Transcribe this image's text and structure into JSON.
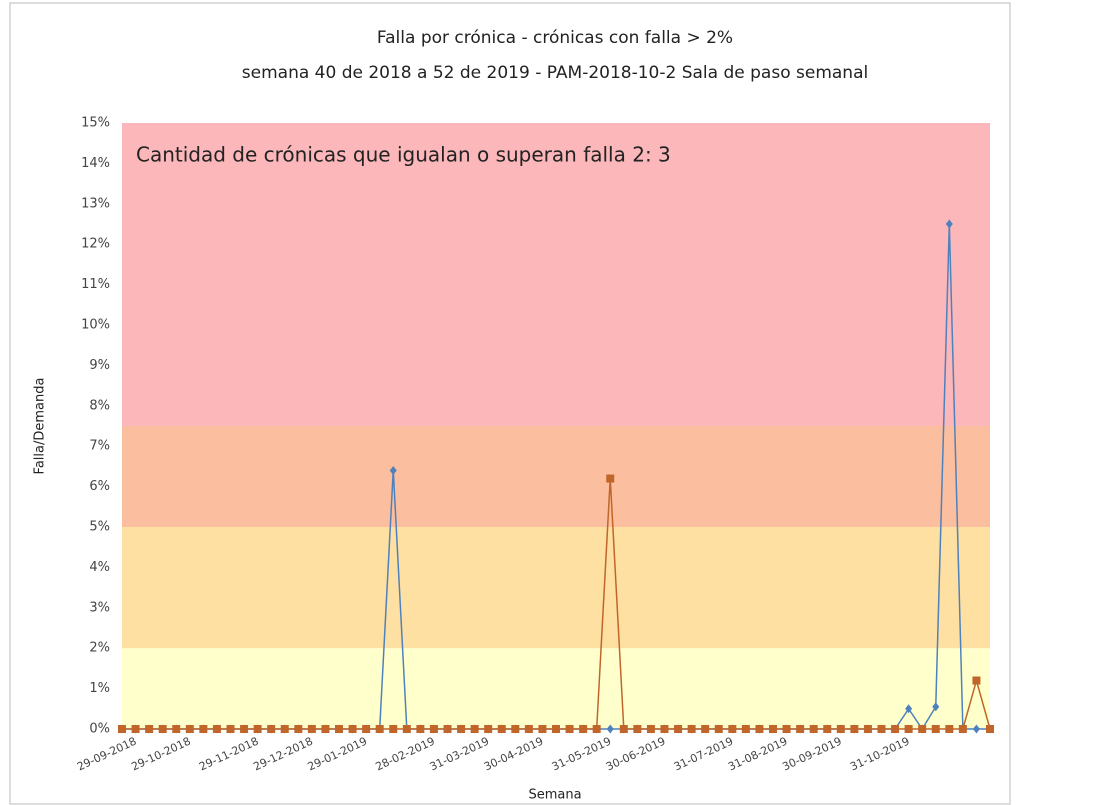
{
  "chart_data": {
    "type": "line",
    "title": "Falla por crónica - crónicas con falla > 2%",
    "subtitle": "semana 40 de 2018 a 52 de 2019 - PAM-2018-10-2 Sala de paso semanal",
    "annotation": "Cantidad de crónicas que igualan o superan falla 2: 3",
    "x_label": "Semana",
    "y_label": "Falla/Demanda",
    "categories": [
      "29-09-2018",
      null,
      null,
      null,
      "29-10-2018",
      null,
      null,
      null,
      null,
      "29-11-2018",
      null,
      null,
      null,
      "29-12-2018",
      null,
      null,
      null,
      "29-01-2019",
      null,
      null,
      null,
      null,
      "28-02-2019",
      null,
      null,
      null,
      "31-03-2019",
      null,
      null,
      null,
      "30-04-2019",
      null,
      null,
      null,
      null,
      "31-05-2019",
      null,
      null,
      null,
      "30-06-2019",
      null,
      null,
      null,
      null,
      "31-07-2019",
      null,
      null,
      null,
      "31-08-2019",
      null,
      null,
      null,
      "30-09-2019",
      null,
      null,
      null,
      null,
      "31-10-2019",
      null,
      null,
      null,
      null,
      null,
      null,
      null
    ],
    "series": [
      {
        "color": "#4f81bd",
        "marker": "diamond",
        "values": [
          0,
          0,
          0,
          0,
          0,
          0,
          0,
          0,
          0,
          0,
          0,
          0,
          0,
          0,
          0,
          0,
          0,
          0,
          0,
          0,
          6.4,
          0,
          0,
          0,
          0,
          0,
          0,
          0,
          0,
          0,
          0,
          0,
          0,
          0,
          0,
          0,
          0,
          0,
          0,
          0,
          0,
          0,
          0,
          0,
          0,
          0,
          0,
          0,
          0,
          0,
          0,
          0,
          0,
          0,
          0,
          0,
          0,
          0,
          0.5,
          0,
          0.55,
          12.5,
          0,
          0,
          0
        ]
      },
      {
        "color": "#c0662a",
        "marker": "square",
        "values": [
          0,
          0,
          0,
          0,
          0,
          0,
          0,
          0,
          0,
          0,
          0,
          0,
          0,
          0,
          0,
          0,
          0,
          0,
          0,
          0,
          0,
          0,
          0,
          0,
          0,
          0,
          0,
          0,
          0,
          0,
          0,
          0,
          0,
          0,
          0,
          0,
          6.2,
          0,
          0,
          0,
          0,
          0,
          0,
          0,
          0,
          0,
          0,
          0,
          0,
          0,
          0,
          0,
          0,
          0,
          0,
          0,
          0,
          0,
          0,
          0,
          0,
          0,
          0,
          1.2,
          0
        ]
      }
    ],
    "bands": [
      {
        "from": 0,
        "to": 2,
        "color": "#ffffcc"
      },
      {
        "from": 2,
        "to": 5,
        "color": "#fde0a2"
      },
      {
        "from": 5,
        "to": 7.5,
        "color": "#fbbf9f"
      },
      {
        "from": 7.5,
        "to": 15,
        "color": "#fbb7b9"
      }
    ],
    "ylim": [
      0,
      15
    ],
    "yticks": [
      {
        "value": 0,
        "label": "0%"
      },
      {
        "value": 1,
        "label": "1%"
      },
      {
        "value": 2,
        "label": "2%"
      },
      {
        "value": 3,
        "label": "3%"
      },
      {
        "value": 4,
        "label": "4%"
      },
      {
        "value": 5,
        "label": "5%"
      },
      {
        "value": 6,
        "label": "6%"
      },
      {
        "value": 7,
        "label": "7%"
      },
      {
        "value": 8,
        "label": "8%"
      },
      {
        "value": 9,
        "label": "9%"
      },
      {
        "value": 10,
        "label": "10%"
      },
      {
        "value": 11,
        "label": "11%"
      },
      {
        "value": 12,
        "label": "12%"
      },
      {
        "value": 13,
        "label": "13%"
      },
      {
        "value": 14,
        "label": "14%"
      },
      {
        "value": 15,
        "label": "15%"
      }
    ]
  }
}
